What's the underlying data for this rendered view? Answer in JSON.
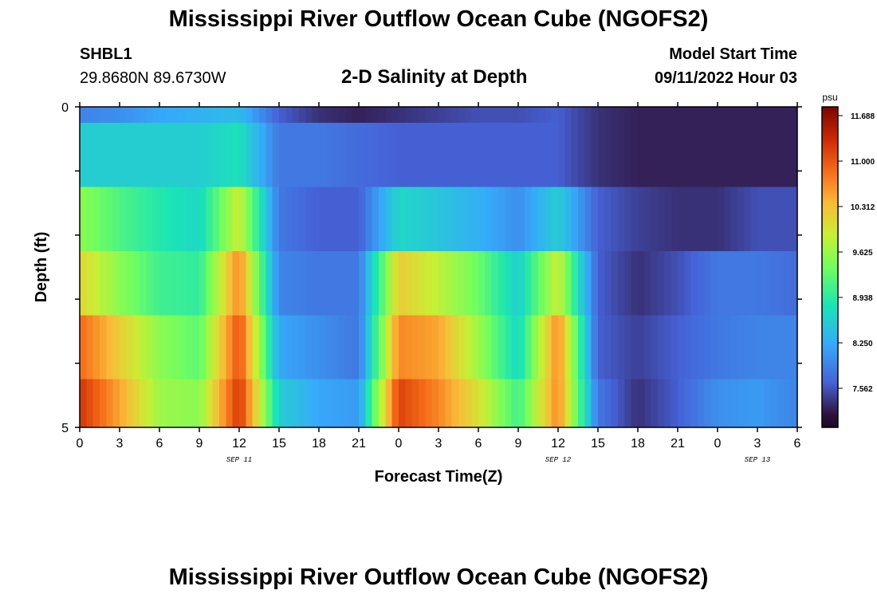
{
  "header": {
    "title": "Mississippi River Outflow Ocean Cube (NGOFS2)",
    "station": "SHBL1",
    "coords": "29.8680N  89.6730W",
    "subtitle": "2-D Salinity at Depth",
    "model_label": "Model Start Time",
    "model_time": "09/11/2022 Hour 03"
  },
  "footer": {
    "title": "Mississippi River Outflow Ocean Cube (NGOFS2)"
  },
  "chart_data": {
    "type": "heatmap",
    "xlabel": "Forecast Time(Z)",
    "ylabel": "Depth (ft)",
    "x_ticks": [
      "0",
      "3",
      "6",
      "9",
      "12",
      "15",
      "18",
      "21",
      "0",
      "3",
      "6",
      "9",
      "12",
      "15",
      "18",
      "21",
      "0",
      "3",
      "6"
    ],
    "date_labels": [
      {
        "text": "SEP 11",
        "at_tick": 4
      },
      {
        "text": "SEP 12",
        "at_tick": 12
      },
      {
        "text": "SEP 13",
        "at_tick": 17
      }
    ],
    "y_ticks": [
      "0",
      "",
      "",
      "",
      "",
      "5"
    ],
    "ylim": [
      0,
      5
    ],
    "colorbar": {
      "unit": "psu",
      "labels": [
        "11.688",
        "11.000",
        "10.312",
        "9.625",
        "8.938",
        "8.250",
        "7.562"
      ],
      "range": [
        6.9,
        12.0
      ]
    },
    "time_hours": [
      0,
      3,
      6,
      9,
      12,
      15,
      18,
      21,
      24,
      27,
      30,
      33,
      36,
      39,
      42,
      45,
      48,
      51,
      54
    ],
    "depth_layers": [
      "0-0.25",
      "0.25-1.25",
      "1.25-2.25",
      "2.25-3.25",
      "3.25-4.25",
      "4.25-5"
    ],
    "values": [
      [
        7.9,
        8.0,
        8.2,
        8.3,
        8.4,
        7.6,
        7.3,
        7.2,
        7.3,
        7.4,
        7.5,
        7.5,
        7.6,
        7.3,
        7.2,
        7.2,
        7.2,
        7.2,
        7.2
      ],
      [
        8.6,
        8.6,
        8.6,
        8.6,
        8.8,
        7.8,
        7.8,
        7.7,
        7.6,
        7.6,
        7.6,
        7.6,
        7.6,
        7.3,
        7.2,
        7.2,
        7.2,
        7.2,
        7.2
      ],
      [
        9.6,
        9.2,
        8.9,
        8.7,
        10.0,
        7.8,
        7.6,
        7.6,
        8.7,
        8.5,
        8.3,
        8.0,
        8.6,
        7.6,
        7.4,
        7.3,
        7.3,
        7.5,
        7.5
      ],
      [
        10.2,
        9.6,
        9.1,
        9.0,
        10.8,
        7.9,
        7.8,
        7.8,
        10.3,
        9.9,
        9.4,
        8.6,
        10.0,
        7.6,
        7.3,
        7.5,
        7.8,
        7.8,
        7.7
      ],
      [
        11.0,
        10.3,
        9.6,
        9.3,
        11.2,
        8.2,
        8.0,
        7.8,
        10.8,
        10.6,
        9.7,
        8.7,
        10.8,
        7.6,
        7.4,
        7.6,
        7.8,
        7.9,
        7.9
      ],
      [
        11.4,
        10.6,
        9.7,
        9.6,
        11.4,
        8.6,
        8.2,
        8.1,
        11.3,
        10.8,
        10.1,
        9.1,
        10.8,
        7.8,
        7.3,
        7.6,
        8.0,
        8.1,
        7.9
      ]
    ]
  }
}
